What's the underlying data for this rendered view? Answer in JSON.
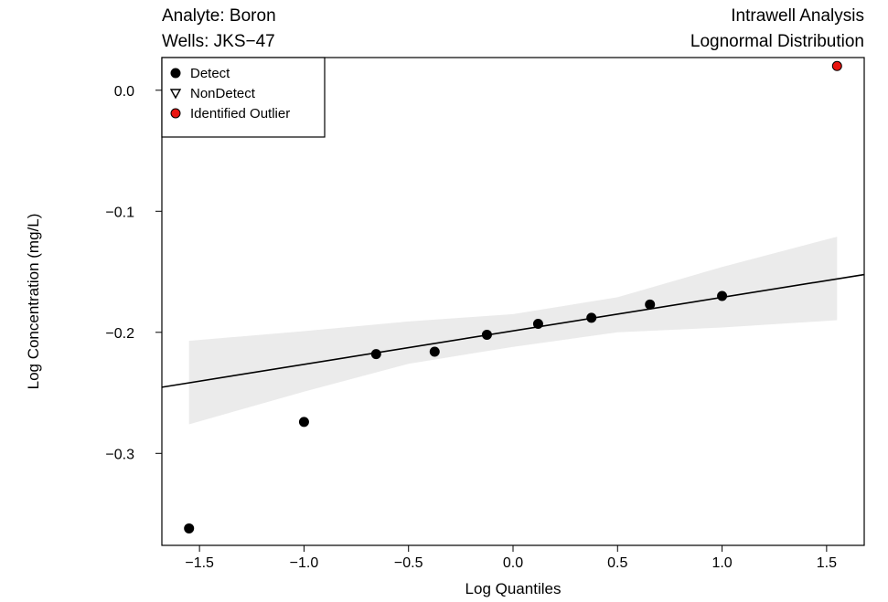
{
  "header": {
    "analyte": "Analyte: Boron",
    "wells": "Wells: JKS−47",
    "analysis": "Intrawell Analysis",
    "distribution": "Lognormal Distribution"
  },
  "chart_data": {
    "type": "scatter",
    "xlabel": "Log Quantiles",
    "ylabel": "Log Concentration (mg/L)",
    "xlim": [
      -1.68,
      1.68
    ],
    "ylim": [
      -0.376,
      0.027
    ],
    "x_ticks": [
      -1.5,
      -1.0,
      -0.5,
      0.0,
      0.5,
      1.0,
      1.5
    ],
    "x_tick_labels": [
      "−1.5",
      "−1.0",
      "−0.5",
      "0.0",
      "0.5",
      "1.0",
      "1.5"
    ],
    "y_ticks": [
      -0.3,
      -0.2,
      -0.1,
      0.0
    ],
    "y_tick_labels": [
      "−0.3",
      "−0.2",
      "−0.1",
      "0.0"
    ],
    "grid": false,
    "legend_position": "top-left",
    "legend": [
      {
        "label": "Detect",
        "marker": "filled-circle",
        "color": "#000000"
      },
      {
        "label": "NonDetect",
        "marker": "open-triangle-down",
        "color": "#000000"
      },
      {
        "label": "Identified Outlier",
        "marker": "filled-circle",
        "color": "#e8140f"
      }
    ],
    "series": [
      {
        "name": "Detect",
        "x": [
          -1.55,
          -1.0,
          -0.655,
          -0.375,
          -0.125,
          0.12,
          0.375,
          0.655,
          1.0
        ],
        "y": [
          -0.362,
          -0.274,
          -0.218,
          -0.216,
          -0.202,
          -0.193,
          -0.188,
          -0.177,
          -0.17
        ],
        "color": "#000000"
      },
      {
        "name": "Identified Outlier",
        "x": [
          1.55
        ],
        "y": [
          0.02
        ],
        "color": "#e8140f"
      }
    ],
    "fit_line": {
      "intercept": -0.1988,
      "slope": 0.0277
    },
    "confidence_band": {
      "x": [
        -1.55,
        -1.0,
        -0.5,
        0.0,
        0.5,
        1.0,
        1.55
      ],
      "lower": [
        -0.276,
        -0.249,
        -0.226,
        -0.212,
        -0.2,
        -0.196,
        -0.19
      ],
      "upper": [
        -0.207,
        -0.199,
        -0.191,
        -0.185,
        -0.171,
        -0.146,
        -0.121
      ],
      "color": "#ebebeb"
    }
  }
}
